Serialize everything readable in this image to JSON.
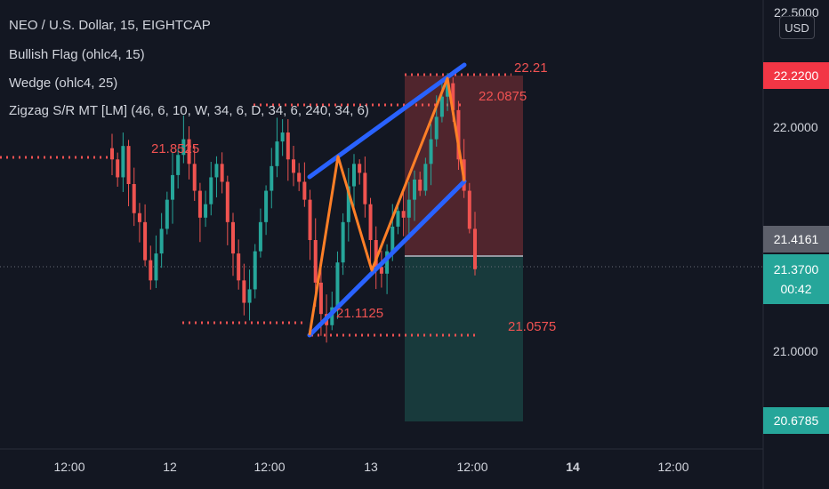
{
  "legend": {
    "symbol": "NEO / U.S. Dollar, 15, EIGHTCAP",
    "ind1": "Bullish Flag (ohlc4, 15)",
    "ind2": "Wedge (ohlc4, 25)",
    "ind3": "Zigzag S/R MT [LM] (46, 6, 10, W, 34, 6, D, 34, 6, 240, 34, 6)"
  },
  "currency_button": "USD",
  "price_scale": {
    "top_partial": "22.5000",
    "ticks": [
      "22.0000",
      "21.0000"
    ],
    "tags": {
      "stop": "22.2200",
      "mark": "21.4161",
      "last": "21.3700",
      "countdown": "00:42",
      "target": "20.6785"
    }
  },
  "time_axis": [
    "12:00",
    "12",
    "12:00",
    "13",
    "12:00",
    "14",
    "12:00"
  ],
  "annotations": {
    "l1": "22.21",
    "l2": "22.0875",
    "l3": "21.8525",
    "l4": "21.1125",
    "l5": "21.0575"
  },
  "colors": {
    "background": "#131722",
    "up": "#26a69a",
    "down": "#ef5350",
    "wedge": "#2962ff",
    "zigzag": "#ff7f27",
    "level": "#f05252",
    "stop_zone": "#7a2e35",
    "target_zone": "#1b4a47"
  },
  "chart_data": {
    "type": "candlestick",
    "symbol": "NEO / U.S. Dollar",
    "timeframe": "15",
    "y_range": [
      20.5,
      22.5
    ],
    "x_range": [
      "Day 11 00:00",
      "Day 14 18:00"
    ],
    "support_resistance": [
      22.21,
      22.0875,
      21.8525,
      21.1125,
      21.0575
    ],
    "wedge_upper": [
      [
        21.78,
        "Day 12 13:30"
      ],
      [
        22.28,
        "Day 13 14:00"
      ]
    ],
    "wedge_lower": [
      [
        21.07,
        "Day 12 13:30"
      ],
      [
        21.77,
        "Day 13 14:00"
      ]
    ],
    "zigzag": [
      21.07,
      21.87,
      21.35,
      22.21,
      21.72
    ],
    "position": {
      "entry": 21.4161,
      "stop": 22.22,
      "target": 20.6785
    },
    "last_price": 21.37,
    "close_series": [
      21.86,
      21.78,
      21.92,
      21.75,
      21.62,
      21.58,
      21.41,
      21.32,
      21.44,
      21.55,
      21.68,
      21.79,
      21.88,
      21.95,
      21.84,
      21.72,
      21.6,
      21.66,
      21.78,
      21.84,
      21.76,
      21.58,
      21.44,
      21.32,
      21.22,
      21.28,
      21.45,
      21.58,
      21.72,
      21.83,
      21.94,
      21.98,
      21.86,
      21.8,
      21.76,
      21.68,
      21.5,
      21.31,
      21.17,
      21.12,
      21.2,
      21.4,
      21.58,
      21.74,
      21.84,
      21.8,
      21.66,
      21.5,
      21.38,
      21.35,
      21.45,
      21.56,
      21.63,
      21.6,
      21.68,
      21.77,
      21.72,
      21.84,
      21.95,
      22.05,
      22.14,
      22.2,
      22.08,
      21.86,
      21.72,
      21.55,
      21.37
    ]
  }
}
